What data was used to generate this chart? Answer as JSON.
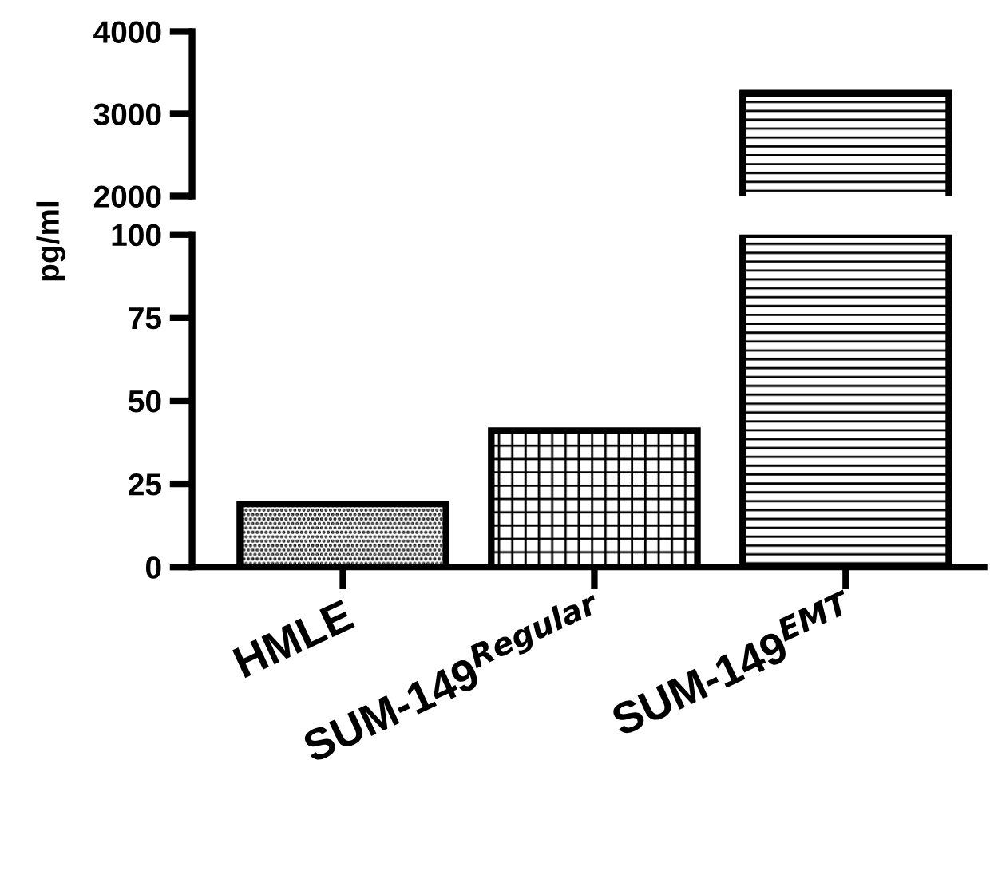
{
  "chart_data": [
    {
      "type": "bar",
      "categories": [
        null,
        null,
        null
      ],
      "values": [
        null,
        null,
        3250
      ],
      "colors": [
        "#000000",
        "#000000",
        "#000000"
      ],
      "ylim": [
        2000,
        4000
      ],
      "yticks": [
        2000,
        3000,
        4000
      ],
      "tick_labels": "y",
      "grid": false,
      "legend": false
    },
    {
      "type": "bar",
      "categories": [
        "HMLE",
        "SUM-149$^{Regular}$",
        "SUM-149$^{EMT}$"
      ],
      "values": [
        19,
        41,
        100
      ],
      "colors": [
        "#000000",
        "#000000",
        "#000000"
      ],
      "ylim": [
        0,
        100
      ],
      "yticks": [
        0,
        25,
        50,
        75,
        100
      ],
      "ylabel": "pg/ml",
      "grid": false,
      "legend": false
    }
  ]
}
